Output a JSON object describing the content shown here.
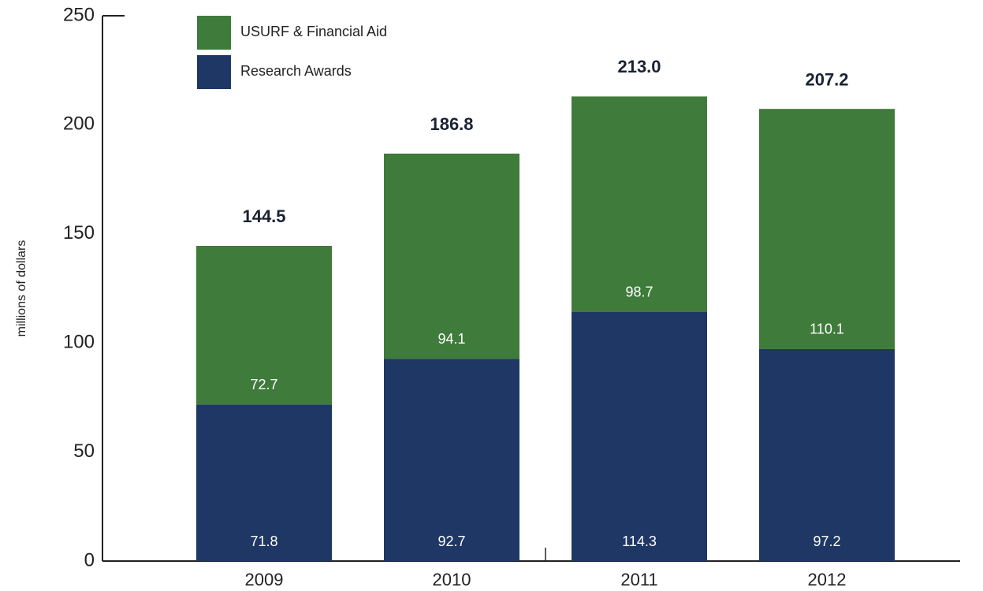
{
  "chart_data": {
    "type": "stacked-bar",
    "y_axis_label": "millions of dollars",
    "categories": [
      "2009",
      "2010",
      "2011",
      "2012"
    ],
    "series": [
      {
        "name": "Research Awards",
        "color": "#1e3764",
        "values": [
          71.8,
          92.7,
          114.3,
          97.2
        ]
      },
      {
        "name": "USURF & Financial Aid",
        "color": "#3f7b3b",
        "values": [
          72.7,
          94.1,
          98.7,
          110.1
        ]
      }
    ],
    "totals": [
      144.5,
      186.8,
      213,
      207.2
    ],
    "total_labels": [
      "144.5",
      "186.8",
      "213.0",
      "207.2"
    ],
    "ylim": [
      0,
      250
    ],
    "yticks": [
      0,
      50,
      100,
      150,
      200,
      250
    ],
    "grid": false
  }
}
